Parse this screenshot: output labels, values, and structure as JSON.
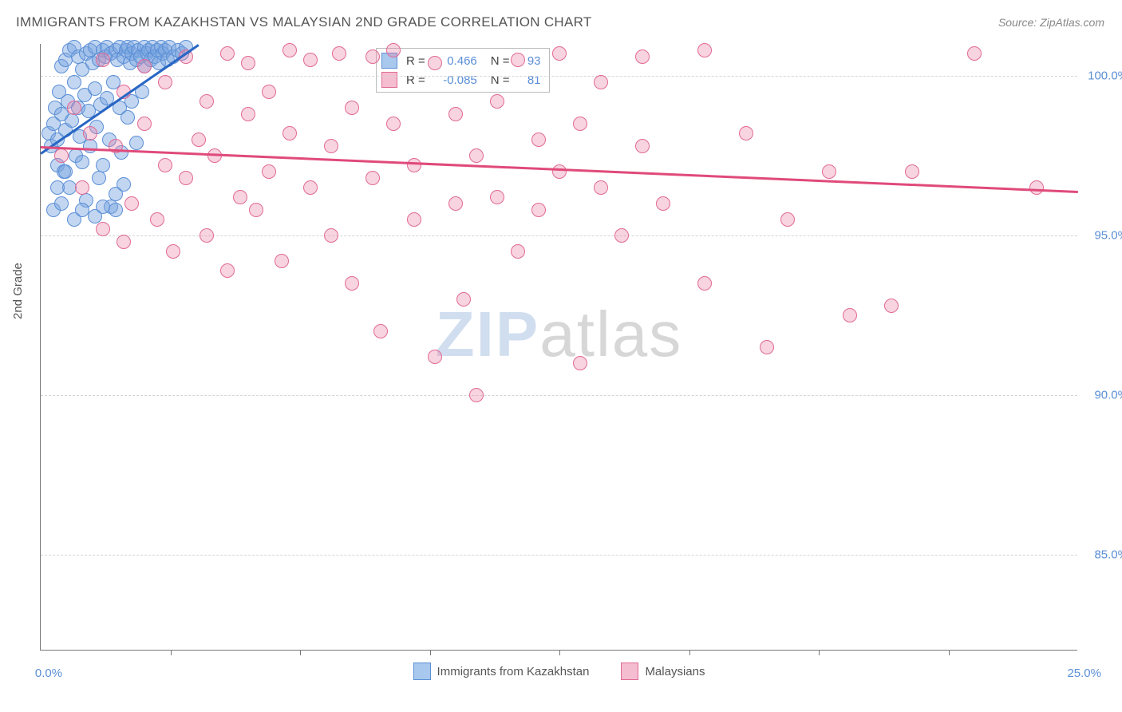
{
  "title": "IMMIGRANTS FROM KAZAKHSTAN VS MALAYSIAN 2ND GRADE CORRELATION CHART",
  "source": "Source: ZipAtlas.com",
  "y_axis_label": "2nd Grade",
  "watermark_zip": "ZIP",
  "watermark_atlas": "atlas",
  "chart": {
    "type": "scatter",
    "xlim": [
      0,
      25
    ],
    "ylim": [
      82,
      101
    ],
    "x_ticks": [
      0,
      25
    ],
    "x_tick_labels": [
      "0.0%",
      "25.0%"
    ],
    "x_minor_ticks": [
      3.125,
      6.25,
      9.375,
      12.5,
      15.625,
      18.75,
      21.875
    ],
    "y_ticks": [
      85,
      90,
      95,
      100
    ],
    "y_tick_labels": [
      "85.0%",
      "90.0%",
      "95.0%",
      "100.0%"
    ],
    "grid_color": "#d5d5d5",
    "background_color": "#ffffff",
    "series": [
      {
        "name": "Immigrants from Kazakhstan",
        "color_fill": "rgba(120,165,225,0.45)",
        "color_stroke": "#5b8fd6",
        "swatch_fill": "#a9c8ee",
        "swatch_border": "#5b8fd6",
        "R": "0.466",
        "N": "93",
        "trend": {
          "x1": 0,
          "y1": 97.6,
          "x2": 3.8,
          "y2": 101,
          "color": "#2866c4"
        },
        "points": [
          [
            0.2,
            98.2
          ],
          [
            0.25,
            97.8
          ],
          [
            0.3,
            98.5
          ],
          [
            0.35,
            99.0
          ],
          [
            0.4,
            97.2
          ],
          [
            0.4,
            98.0
          ],
          [
            0.45,
            99.5
          ],
          [
            0.5,
            98.8
          ],
          [
            0.5,
            100.3
          ],
          [
            0.55,
            97.0
          ],
          [
            0.6,
            98.3
          ],
          [
            0.6,
            100.5
          ],
          [
            0.65,
            99.2
          ],
          [
            0.7,
            96.5
          ],
          [
            0.7,
            100.8
          ],
          [
            0.75,
            98.6
          ],
          [
            0.8,
            99.8
          ],
          [
            0.8,
            100.9
          ],
          [
            0.85,
            97.5
          ],
          [
            0.9,
            99.0
          ],
          [
            0.9,
            100.6
          ],
          [
            0.95,
            98.1
          ],
          [
            1.0,
            100.2
          ],
          [
            1.0,
            97.3
          ],
          [
            1.05,
            99.4
          ],
          [
            1.1,
            100.7
          ],
          [
            1.1,
            96.1
          ],
          [
            1.15,
            98.9
          ],
          [
            1.2,
            100.8
          ],
          [
            1.2,
            97.8
          ],
          [
            1.25,
            100.4
          ],
          [
            1.3,
            99.6
          ],
          [
            1.3,
            100.9
          ],
          [
            1.35,
            98.4
          ],
          [
            1.4,
            100.5
          ],
          [
            1.4,
            96.8
          ],
          [
            1.45,
            99.1
          ],
          [
            1.5,
            100.8
          ],
          [
            1.5,
            97.2
          ],
          [
            1.55,
            100.6
          ],
          [
            1.6,
            99.3
          ],
          [
            1.6,
            100.9
          ],
          [
            1.65,
            98.0
          ],
          [
            1.7,
            100.7
          ],
          [
            1.7,
            95.9
          ],
          [
            1.75,
            99.8
          ],
          [
            1.8,
            100.8
          ],
          [
            1.8,
            96.3
          ],
          [
            1.85,
            100.5
          ],
          [
            1.9,
            99.0
          ],
          [
            1.9,
            100.9
          ],
          [
            1.95,
            97.6
          ],
          [
            2.0,
            100.6
          ],
          [
            2.0,
            96.6
          ],
          [
            2.05,
            100.8
          ],
          [
            2.1,
            98.7
          ],
          [
            2.1,
            100.9
          ],
          [
            2.15,
            100.4
          ],
          [
            2.2,
            99.2
          ],
          [
            2.2,
            100.7
          ],
          [
            2.25,
            100.9
          ],
          [
            2.3,
            100.5
          ],
          [
            2.3,
            97.9
          ],
          [
            2.35,
            100.8
          ],
          [
            2.4,
            100.6
          ],
          [
            2.45,
            99.5
          ],
          [
            2.5,
            100.9
          ],
          [
            2.5,
            100.3
          ],
          [
            2.55,
            100.7
          ],
          [
            2.6,
            100.8
          ],
          [
            2.65,
            100.5
          ],
          [
            2.7,
            100.9
          ],
          [
            2.75,
            100.6
          ],
          [
            2.8,
            100.8
          ],
          [
            2.85,
            100.4
          ],
          [
            2.9,
            100.9
          ],
          [
            2.95,
            100.7
          ],
          [
            3.0,
            100.8
          ],
          [
            3.05,
            100.5
          ],
          [
            3.1,
            100.9
          ],
          [
            3.2,
            100.6
          ],
          [
            3.3,
            100.8
          ],
          [
            3.4,
            100.7
          ],
          [
            3.5,
            100.9
          ],
          [
            0.3,
            95.8
          ],
          [
            0.5,
            96.0
          ],
          [
            0.8,
            95.5
          ],
          [
            1.0,
            95.8
          ],
          [
            1.3,
            95.6
          ],
          [
            0.4,
            96.5
          ],
          [
            0.6,
            97.0
          ],
          [
            1.5,
            95.9
          ],
          [
            1.8,
            95.8
          ]
        ]
      },
      {
        "name": "Malaysians",
        "color_fill": "rgba(235,130,165,0.35)",
        "color_stroke": "#e06a95",
        "swatch_fill": "#f5bdd0",
        "swatch_border": "#e06a95",
        "R": "-0.085",
        "N": "81",
        "trend": {
          "x1": 0,
          "y1": 97.8,
          "x2": 25,
          "y2": 96.4,
          "color": "#e04a7a"
        },
        "points": [
          [
            0.5,
            97.5
          ],
          [
            0.8,
            99.0
          ],
          [
            1.0,
            96.5
          ],
          [
            1.2,
            98.2
          ],
          [
            1.5,
            100.5
          ],
          [
            1.5,
            95.2
          ],
          [
            1.8,
            97.8
          ],
          [
            2.0,
            99.5
          ],
          [
            2.0,
            94.8
          ],
          [
            2.2,
            96.0
          ],
          [
            2.5,
            98.5
          ],
          [
            2.5,
            100.3
          ],
          [
            2.8,
            95.5
          ],
          [
            3.0,
            97.2
          ],
          [
            3.0,
            99.8
          ],
          [
            3.2,
            94.5
          ],
          [
            3.5,
            96.8
          ],
          [
            3.5,
            100.6
          ],
          [
            3.8,
            98.0
          ],
          [
            4.0,
            95.0
          ],
          [
            4.0,
            99.2
          ],
          [
            4.2,
            97.5
          ],
          [
            4.5,
            100.7
          ],
          [
            4.5,
            93.9
          ],
          [
            4.8,
            96.2
          ],
          [
            5.0,
            98.8
          ],
          [
            5.0,
            100.4
          ],
          [
            5.2,
            95.8
          ],
          [
            5.5,
            97.0
          ],
          [
            5.5,
            99.5
          ],
          [
            5.8,
            94.2
          ],
          [
            6.0,
            98.2
          ],
          [
            6.0,
            100.8
          ],
          [
            6.5,
            96.5
          ],
          [
            6.5,
            100.5
          ],
          [
            7.0,
            97.8
          ],
          [
            7.0,
            95.0
          ],
          [
            7.2,
            100.7
          ],
          [
            7.5,
            99.0
          ],
          [
            7.5,
            93.5
          ],
          [
            8.0,
            96.8
          ],
          [
            8.0,
            100.6
          ],
          [
            8.2,
            92.0
          ],
          [
            8.5,
            98.5
          ],
          [
            8.5,
            100.8
          ],
          [
            9.0,
            97.2
          ],
          [
            9.0,
            95.5
          ],
          [
            9.5,
            100.4
          ],
          [
            9.5,
            91.2
          ],
          [
            10.0,
            96.0
          ],
          [
            10.0,
            98.8
          ],
          [
            10.2,
            93.0
          ],
          [
            10.5,
            97.5
          ],
          [
            10.5,
            90.0
          ],
          [
            11.0,
            99.2
          ],
          [
            11.0,
            96.2
          ],
          [
            11.5,
            100.5
          ],
          [
            11.5,
            94.5
          ],
          [
            12.0,
            98.0
          ],
          [
            12.0,
            95.8
          ],
          [
            12.5,
            97.0
          ],
          [
            12.5,
            100.7
          ],
          [
            13.0,
            91.0
          ],
          [
            13.0,
            98.5
          ],
          [
            13.5,
            96.5
          ],
          [
            13.5,
            99.8
          ],
          [
            14.0,
            95.0
          ],
          [
            14.5,
            97.8
          ],
          [
            14.5,
            100.6
          ],
          [
            15.0,
            96.0
          ],
          [
            16.0,
            100.8
          ],
          [
            16.0,
            93.5
          ],
          [
            17.0,
            98.2
          ],
          [
            17.5,
            91.5
          ],
          [
            18.0,
            95.5
          ],
          [
            19.0,
            97.0
          ],
          [
            19.5,
            92.5
          ],
          [
            20.5,
            92.8
          ],
          [
            21.0,
            97.0
          ],
          [
            22.5,
            100.7
          ],
          [
            24.0,
            96.5
          ]
        ]
      }
    ],
    "legend_bottom": [
      {
        "label": "Immigrants from Kazakhstan",
        "fill": "#a9c8ee",
        "border": "#5b8fd6"
      },
      {
        "label": "Malaysians",
        "fill": "#f5bdd0",
        "border": "#e06a95"
      }
    ]
  }
}
